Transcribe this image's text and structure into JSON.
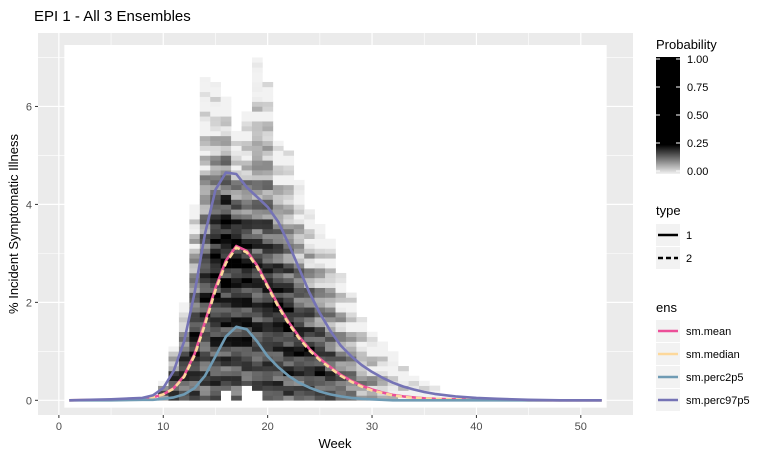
{
  "chart_data": {
    "type": "line",
    "title": "EPI 1 - All 3 Ensembles",
    "xlabel": "Week",
    "ylabel": "% Incident Symptomatic Illness",
    "xlim": [
      -2,
      55
    ],
    "ylim": [
      -0.3,
      7.5
    ],
    "xticks": [
      0,
      10,
      20,
      30,
      40,
      50
    ],
    "yticks": [
      0,
      2,
      4,
      6
    ],
    "grid": true,
    "background_color": "#ebebeb",
    "grid_color": "#ffffff",
    "heatmap": {
      "legend_title": "Probability",
      "legend_ticks": [
        "1.00",
        "0.75",
        "0.50",
        "0.25",
        "0.00"
      ],
      "cell_width_weeks": 1,
      "cell_height_pct": 0.1,
      "columns": [
        {
          "week": 10,
          "start": 0.0,
          "peak": 0.1,
          "end": 0.4,
          "max": 0.6
        },
        {
          "week": 11,
          "start": 0.0,
          "peak": 0.3,
          "end": 1.0,
          "max": 0.9
        },
        {
          "week": 12,
          "start": 0.0,
          "peak": 0.6,
          "end": 2.0,
          "max": 0.95
        },
        {
          "week": 13,
          "start": 0.0,
          "peak": 1.1,
          "end": 4.0,
          "max": 0.95
        },
        {
          "week": 14,
          "start": 0.0,
          "peak": 2.0,
          "end": 6.5,
          "max": 0.9
        },
        {
          "week": 15,
          "start": 0.0,
          "peak": 3.0,
          "end": 6.4,
          "max": 1.0
        },
        {
          "week": 16,
          "start": 0.2,
          "peak": 3.5,
          "end": 6.1,
          "max": 1.0
        },
        {
          "week": 17,
          "start": 0.0,
          "peak": 3.2,
          "end": 5.4,
          "max": 1.0
        },
        {
          "week": 18,
          "start": 0.3,
          "peak": 2.8,
          "end": 5.8,
          "max": 1.0
        },
        {
          "week": 19,
          "start": 0.2,
          "peak": 2.6,
          "end": 6.9,
          "max": 0.9
        },
        {
          "week": 20,
          "start": 0.0,
          "peak": 2.3,
          "end": 6.4,
          "max": 1.0
        },
        {
          "week": 21,
          "start": 0.0,
          "peak": 2.0,
          "end": 5.2,
          "max": 1.0
        },
        {
          "week": 22,
          "start": 0.0,
          "peak": 1.6,
          "end": 5.0,
          "max": 1.0
        },
        {
          "week": 23,
          "start": 0.0,
          "peak": 1.2,
          "end": 4.5,
          "max": 0.95
        },
        {
          "week": 24,
          "start": 0.0,
          "peak": 0.9,
          "end": 3.9,
          "max": 0.95
        },
        {
          "week": 25,
          "start": 0.0,
          "peak": 0.6,
          "end": 3.6,
          "max": 0.9
        },
        {
          "week": 26,
          "start": 0.0,
          "peak": 0.4,
          "end": 3.3,
          "max": 0.85
        },
        {
          "week": 27,
          "start": 0.0,
          "peak": 0.3,
          "end": 2.6,
          "max": 0.75
        },
        {
          "week": 28,
          "start": 0.0,
          "peak": 0.2,
          "end": 2.2,
          "max": 0.65
        },
        {
          "week": 29,
          "start": 0.0,
          "peak": 0.15,
          "end": 1.7,
          "max": 0.55
        },
        {
          "week": 30,
          "start": 0.0,
          "peak": 0.1,
          "end": 1.4,
          "max": 0.45
        },
        {
          "week": 31,
          "start": 0.0,
          "peak": 0.05,
          "end": 1.2,
          "max": 0.35
        },
        {
          "week": 32,
          "start": 0.0,
          "peak": 0.0,
          "end": 0.9,
          "max": 0.25
        },
        {
          "week": 33,
          "start": 0.0,
          "peak": 0.0,
          "end": 0.7,
          "max": 0.2
        },
        {
          "week": 34,
          "start": 0.0,
          "peak": 0.0,
          "end": 0.5,
          "max": 0.15
        },
        {
          "week": 35,
          "start": 0.0,
          "peak": 0.0,
          "end": 0.4,
          "max": 0.1
        },
        {
          "week": 36,
          "start": 0.0,
          "peak": 0.0,
          "end": 0.3,
          "max": 0.07
        }
      ]
    },
    "x": [
      1,
      5,
      8,
      9,
      10,
      11,
      12,
      13,
      14,
      15,
      16,
      17,
      18,
      19,
      20,
      21,
      22,
      23,
      24,
      25,
      26,
      27,
      28,
      29,
      30,
      31,
      32,
      33,
      34,
      35,
      36,
      38,
      40,
      42,
      45,
      48,
      52
    ],
    "series": [
      {
        "name": "sm.mean",
        "type": "1",
        "color": "#ec4f98",
        "values": [
          0,
          0.01,
          0.03,
          0.06,
          0.12,
          0.25,
          0.5,
          0.95,
          1.6,
          2.3,
          2.85,
          3.15,
          3.05,
          2.75,
          2.35,
          1.95,
          1.6,
          1.3,
          1.05,
          0.85,
          0.68,
          0.52,
          0.4,
          0.3,
          0.22,
          0.16,
          0.11,
          0.08,
          0.06,
          0.04,
          0.03,
          0.02,
          0.01,
          0.01,
          0,
          0,
          0
        ]
      },
      {
        "name": "sm.median",
        "type": "2",
        "color": "#fdd89b",
        "values": [
          0,
          0.01,
          0.03,
          0.06,
          0.12,
          0.24,
          0.48,
          0.92,
          1.55,
          2.25,
          2.8,
          3.12,
          3.02,
          2.72,
          2.32,
          1.92,
          1.57,
          1.27,
          1.02,
          0.82,
          0.66,
          0.5,
          0.38,
          0.28,
          0.2,
          0.15,
          0.1,
          0.07,
          0.05,
          0.04,
          0.03,
          0.02,
          0.01,
          0.01,
          0,
          0,
          0
        ]
      },
      {
        "name": "sm.perc2p5",
        "type": "1",
        "color": "#6f9bb4",
        "values": [
          0,
          0,
          0.01,
          0.01,
          0.03,
          0.06,
          0.12,
          0.25,
          0.5,
          0.9,
          1.3,
          1.5,
          1.45,
          1.2,
          0.9,
          0.68,
          0.5,
          0.36,
          0.26,
          0.18,
          0.12,
          0.08,
          0.05,
          0.03,
          0.02,
          0.01,
          0,
          0,
          0,
          0,
          0,
          0,
          0,
          0,
          0,
          0,
          0
        ]
      },
      {
        "name": "sm.perc97p5",
        "type": "1",
        "color": "#7573b5",
        "values": [
          0,
          0.02,
          0.05,
          0.1,
          0.25,
          0.6,
          1.2,
          2.2,
          3.4,
          4.3,
          4.65,
          4.62,
          4.35,
          4.15,
          3.95,
          3.65,
          3.2,
          2.7,
          2.2,
          1.78,
          1.42,
          1.12,
          0.9,
          0.72,
          0.58,
          0.46,
          0.36,
          0.28,
          0.22,
          0.17,
          0.13,
          0.08,
          0.05,
          0.03,
          0.01,
          0,
          0
        ]
      }
    ],
    "legend_type": {
      "title": "type",
      "labels": [
        "1",
        "2"
      ]
    },
    "legend_ens": {
      "title": "ens",
      "labels": [
        "sm.mean",
        "sm.median",
        "sm.perc2p5",
        "sm.perc97p5"
      ]
    }
  }
}
